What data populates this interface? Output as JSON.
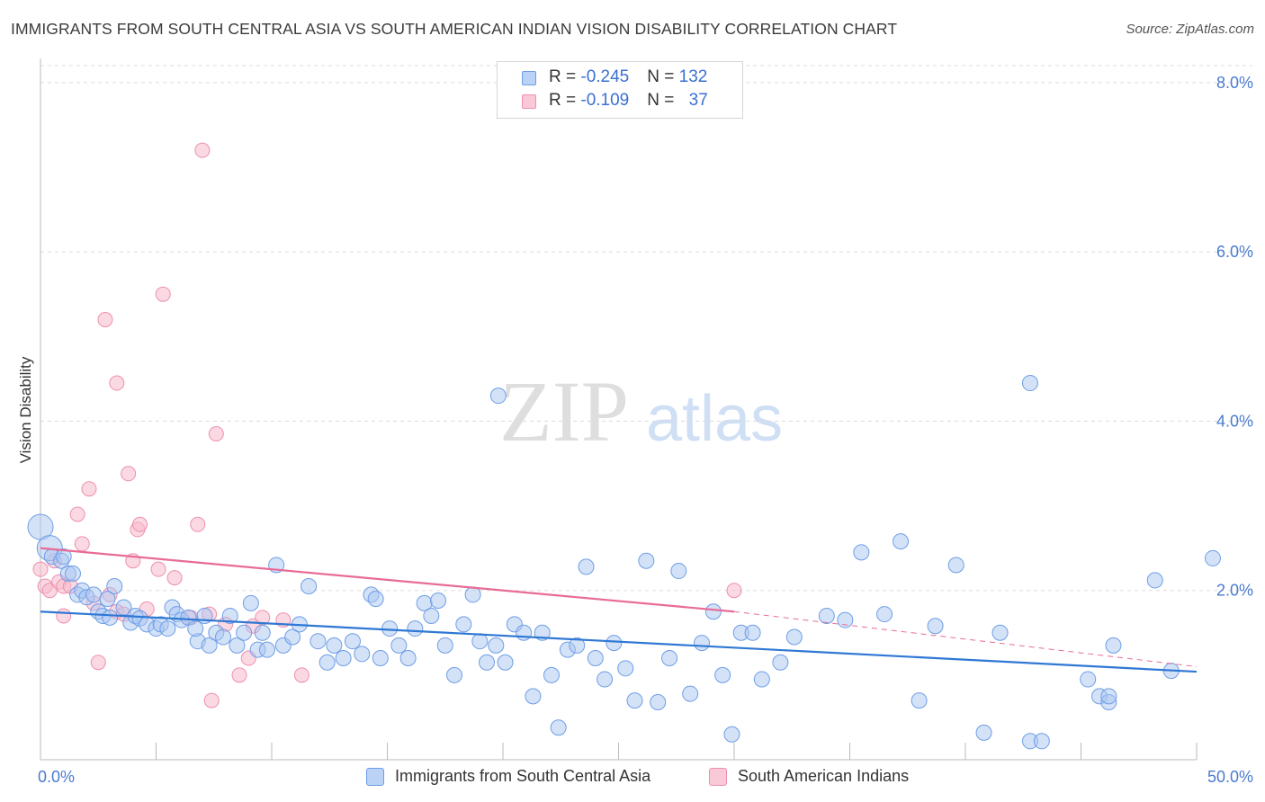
{
  "title": "IMMIGRANTS FROM SOUTH CENTRAL ASIA VS SOUTH AMERICAN INDIAN VISION DISABILITY CORRELATION CHART",
  "source": "Source: ZipAtlas.com",
  "watermark": {
    "zip": "ZIP",
    "atlas": "atlas"
  },
  "colors": {
    "blue_fill": "#a9c6f2",
    "blue_stroke": "#6e9ee6",
    "blue_line": "#2f78d4",
    "pink_fill": "#f7b9cc",
    "pink_stroke": "#ee8fae",
    "pink_line": "#e86b96",
    "tick_label": "#4a7bd0",
    "grid": "#dcdcdc"
  },
  "legend": {
    "rows": [
      {
        "r_label": "R = ",
        "r_value": "-0.245",
        "n_label": "N = ",
        "n_value": "132"
      },
      {
        "r_label": "R = ",
        "r_value": "-0.109",
        "n_label": "N = ",
        "n_value": "37"
      }
    ]
  },
  "bottom_legend": [
    "Immigrants from South Central Asia",
    "South American Indians"
  ],
  "chart_data": {
    "type": "scatter",
    "title": "IMMIGRANTS FROM SOUTH CENTRAL ASIA VS SOUTH AMERICAN INDIAN VISION DISABILITY CORRELATION CHART",
    "xlabel": "",
    "ylabel": "Vision Disability",
    "xlim": [
      0,
      50
    ],
    "ylim": [
      0,
      8.2
    ],
    "x_tick_labels": [
      "0.0%",
      "50.0%"
    ],
    "y_ticks": [
      2.0,
      4.0,
      6.0,
      8.0
    ],
    "y_tick_labels": [
      "2.0%",
      "4.0%",
      "6.0%",
      "8.0%"
    ],
    "grid": true,
    "legend_position": "top-center",
    "series": [
      {
        "name": "Immigrants from South Central Asia",
        "r": -0.245,
        "n": 132,
        "trend": {
          "x": [
            0,
            50
          ],
          "y": [
            1.75,
            1.04
          ]
        },
        "points": [
          [
            0.0,
            2.75
          ],
          [
            0.4,
            2.5
          ],
          [
            0.5,
            2.4
          ],
          [
            0.9,
            2.35
          ],
          [
            1.0,
            2.4
          ],
          [
            1.2,
            2.2
          ],
          [
            1.4,
            2.2
          ],
          [
            1.6,
            1.95
          ],
          [
            1.8,
            2.0
          ],
          [
            2.0,
            1.92
          ],
          [
            2.3,
            1.95
          ],
          [
            2.5,
            1.75
          ],
          [
            2.7,
            1.7
          ],
          [
            2.9,
            1.9
          ],
          [
            3.2,
            2.05
          ],
          [
            3.6,
            1.8
          ],
          [
            3.9,
            1.62
          ],
          [
            4.1,
            1.7
          ],
          [
            4.3,
            1.67
          ],
          [
            4.6,
            1.6
          ],
          [
            5.0,
            1.55
          ],
          [
            5.2,
            1.6
          ],
          [
            5.5,
            1.55
          ],
          [
            5.7,
            1.8
          ],
          [
            5.9,
            1.72
          ],
          [
            6.1,
            1.65
          ],
          [
            6.4,
            1.68
          ],
          [
            6.8,
            1.4
          ],
          [
            7.1,
            1.7
          ],
          [
            7.3,
            1.35
          ],
          [
            7.6,
            1.5
          ],
          [
            7.9,
            1.45
          ],
          [
            8.2,
            1.7
          ],
          [
            8.5,
            1.35
          ],
          [
            8.8,
            1.5
          ],
          [
            9.1,
            1.85
          ],
          [
            9.4,
            1.3
          ],
          [
            9.8,
            1.3
          ],
          [
            10.2,
            2.3
          ],
          [
            10.5,
            1.35
          ],
          [
            10.9,
            1.45
          ],
          [
            11.2,
            1.6
          ],
          [
            11.6,
            2.05
          ],
          [
            12.0,
            1.4
          ],
          [
            12.4,
            1.15
          ],
          [
            12.7,
            1.35
          ],
          [
            13.1,
            1.2
          ],
          [
            13.5,
            1.4
          ],
          [
            13.9,
            1.25
          ],
          [
            14.3,
            1.95
          ],
          [
            14.7,
            1.2
          ],
          [
            15.1,
            1.55
          ],
          [
            15.5,
            1.35
          ],
          [
            15.9,
            1.2
          ],
          [
            16.2,
            1.55
          ],
          [
            16.6,
            1.85
          ],
          [
            16.9,
            1.7
          ],
          [
            17.2,
            1.88
          ],
          [
            17.5,
            1.35
          ],
          [
            17.9,
            1.0
          ],
          [
            18.3,
            1.6
          ],
          [
            18.7,
            1.95
          ],
          [
            19.0,
            1.4
          ],
          [
            19.3,
            1.15
          ],
          [
            19.7,
            1.35
          ],
          [
            20.1,
            1.15
          ],
          [
            20.5,
            1.6
          ],
          [
            20.9,
            1.5
          ],
          [
            21.3,
            0.75
          ],
          [
            21.7,
            1.5
          ],
          [
            22.1,
            1.0
          ],
          [
            22.4,
            0.38
          ],
          [
            22.8,
            1.3
          ],
          [
            23.2,
            1.35
          ],
          [
            23.6,
            2.28
          ],
          [
            24.0,
            1.2
          ],
          [
            24.4,
            0.95
          ],
          [
            24.8,
            1.38
          ],
          [
            25.3,
            1.08
          ],
          [
            25.7,
            0.7
          ],
          [
            26.2,
            2.35
          ],
          [
            26.7,
            0.68
          ],
          [
            27.2,
            1.2
          ],
          [
            27.6,
            2.23
          ],
          [
            28.1,
            0.78
          ],
          [
            28.6,
            1.38
          ],
          [
            29.1,
            1.75
          ],
          [
            29.5,
            1.0
          ],
          [
            29.9,
            0.3
          ],
          [
            30.3,
            1.5
          ],
          [
            30.8,
            1.5
          ],
          [
            31.2,
            0.95
          ],
          [
            32.0,
            1.15
          ],
          [
            32.6,
            1.45
          ],
          [
            34.0,
            1.7
          ],
          [
            34.8,
            1.65
          ],
          [
            35.5,
            2.45
          ],
          [
            36.5,
            1.72
          ],
          [
            37.2,
            2.58
          ],
          [
            38.0,
            0.7
          ],
          [
            38.7,
            1.58
          ],
          [
            39.6,
            2.3
          ],
          [
            40.8,
            0.32
          ],
          [
            41.5,
            1.5
          ],
          [
            42.8,
            4.45
          ],
          [
            42.8,
            0.22
          ],
          [
            43.3,
            0.22
          ],
          [
            45.3,
            0.95
          ],
          [
            45.8,
            0.75
          ],
          [
            46.2,
            0.68
          ],
          [
            46.4,
            1.35
          ],
          [
            46.2,
            0.75
          ],
          [
            48.2,
            2.12
          ],
          [
            48.9,
            1.05
          ],
          [
            50.7,
            2.38
          ],
          [
            19.8,
            4.3
          ],
          [
            14.5,
            1.9
          ],
          [
            9.6,
            1.5
          ],
          [
            6.7,
            1.55
          ],
          [
            3.0,
            1.68
          ]
        ]
      },
      {
        "name": "South American Indians",
        "r": -0.109,
        "n": 37,
        "trend": {
          "x": [
            0,
            30
          ],
          "y": [
            2.5,
            1.75
          ]
        },
        "trend_dashed": {
          "x": [
            30,
            50
          ],
          "y": [
            1.75,
            1.1
          ]
        },
        "points": [
          [
            0.0,
            2.25
          ],
          [
            0.2,
            2.05
          ],
          [
            0.4,
            2.0
          ],
          [
            0.6,
            2.35
          ],
          [
            0.8,
            2.1
          ],
          [
            1.0,
            2.05
          ],
          [
            1.0,
            1.7
          ],
          [
            1.3,
            2.05
          ],
          [
            1.6,
            2.9
          ],
          [
            1.8,
            2.55
          ],
          [
            2.1,
            3.2
          ],
          [
            2.3,
            1.85
          ],
          [
            2.5,
            1.15
          ],
          [
            3.0,
            1.95
          ],
          [
            3.3,
            1.75
          ],
          [
            3.6,
            1.72
          ],
          [
            3.8,
            3.38
          ],
          [
            4.0,
            2.35
          ],
          [
            4.2,
            2.72
          ],
          [
            4.3,
            2.78
          ],
          [
            4.6,
            1.78
          ],
          [
            5.1,
            2.25
          ],
          [
            5.3,
            5.5
          ],
          [
            5.8,
            2.15
          ],
          [
            6.5,
            1.68
          ],
          [
            6.8,
            2.78
          ],
          [
            7.0,
            7.2
          ],
          [
            7.3,
            1.72
          ],
          [
            7.6,
            3.85
          ],
          [
            8.0,
            1.6
          ],
          [
            8.6,
            1.0
          ],
          [
            9.0,
            1.2
          ],
          [
            9.2,
            1.58
          ],
          [
            9.6,
            1.68
          ],
          [
            10.5,
            1.65
          ],
          [
            11.3,
            1.0
          ],
          [
            30.0,
            2.0
          ],
          [
            2.8,
            5.2
          ],
          [
            3.3,
            4.45
          ],
          [
            7.4,
            0.7
          ]
        ]
      }
    ]
  }
}
